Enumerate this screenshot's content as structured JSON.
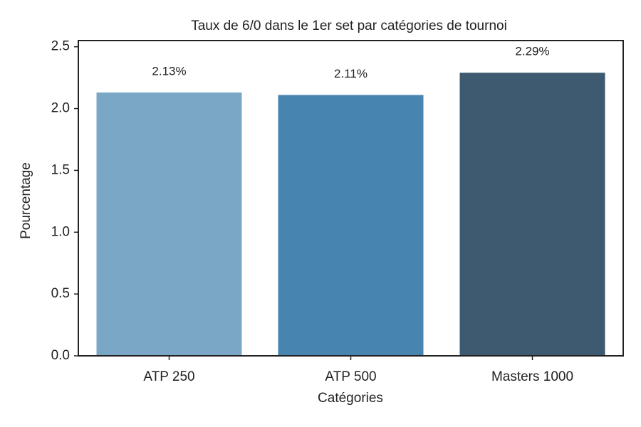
{
  "chart_data": {
    "type": "bar",
    "title": "Taux de 6/0 dans le 1er set par catégories de tournoi",
    "x_label": "Catégories",
    "y_label": "Pourcentage",
    "categories": [
      "ATP 250",
      "ATP 500",
      "Masters 1000"
    ],
    "values": [
      2.13,
      2.11,
      2.29
    ],
    "value_labels": [
      "2.13%",
      "2.11%",
      "2.29%"
    ],
    "colors": [
      "#7ba7c7",
      "#4884b0",
      "#3d5a70"
    ],
    "ylim": [
      0,
      2.55
    ],
    "yticks": [
      {
        "value": 0,
        "label": "0.0"
      },
      {
        "value": 0.5,
        "label": "0.5"
      },
      {
        "value": 1,
        "label": "1.0"
      },
      {
        "value": 1.5,
        "label": "1.5"
      },
      {
        "value": 2,
        "label": "2.0"
      },
      {
        "value": 2.5,
        "label": "2.5"
      }
    ],
    "grid": false
  }
}
